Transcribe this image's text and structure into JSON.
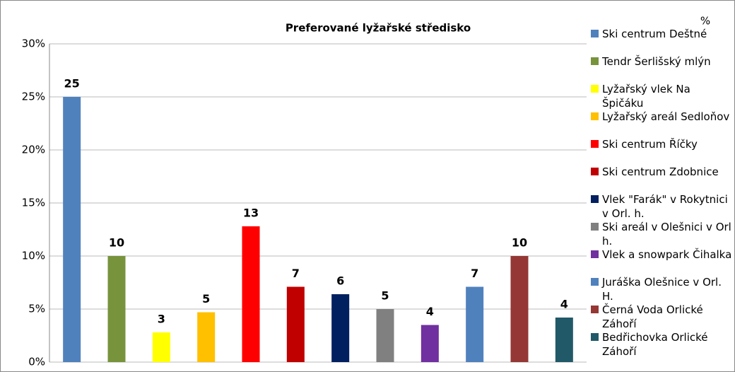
{
  "chart_data": {
    "type": "bar",
    "title": "Preferované lyžařské středisko",
    "legend_title": "%",
    "categories": [
      null
    ],
    "series": [
      {
        "name": "Ski centrum Deštné",
        "color": "#4f81bd",
        "values": [
          25
        ],
        "value_labels": [
          "25"
        ]
      },
      {
        "name": "Tendr Šerlišský mlýn",
        "color": "#77933c",
        "values": [
          10
        ],
        "value_labels": [
          "10"
        ]
      },
      {
        "name": "Lyžařský vlek Na Špičáku",
        "color": "#ffff00",
        "values": [
          2.8
        ],
        "value_labels": [
          "3"
        ]
      },
      {
        "name": "Lyžařský areál Sedloňov",
        "color": "#ffc000",
        "values": [
          4.7
        ],
        "value_labels": [
          "5"
        ]
      },
      {
        "name": "Ski centrum Říčky",
        "color": "#ff0000",
        "values": [
          12.8
        ],
        "value_labels": [
          "13"
        ]
      },
      {
        "name": "Ski centrum Zdobnice",
        "color": "#c00000",
        "values": [
          7.1
        ],
        "value_labels": [
          "7"
        ]
      },
      {
        "name": "Vlek \"Farák\" v Rokytnici v Orl. h.",
        "color": "#002060",
        "values": [
          6.4
        ],
        "value_labels": [
          "6"
        ]
      },
      {
        "name": "Ski areál v Olešnici v Orl h.",
        "color": "#808080",
        "values": [
          5.0
        ],
        "value_labels": [
          "5"
        ]
      },
      {
        "name": "Vlek a snowpark Čihalka",
        "color": "#7030a0",
        "values": [
          3.5
        ],
        "value_labels": [
          "4"
        ]
      },
      {
        "name": "Juráška Olešnice v Orl. H.",
        "color": "#4f81bd",
        "values": [
          7.1
        ],
        "value_labels": [
          "7"
        ]
      },
      {
        "name": "Černá Voda Orlické Záhoří",
        "color": "#953735",
        "values": [
          10
        ],
        "value_labels": [
          "10"
        ]
      },
      {
        "name": "Bedřichovka Orlické Záhoří",
        "color": "#215968",
        "values": [
          4.2
        ],
        "value_labels": [
          "4"
        ]
      }
    ],
    "ylim": [
      0,
      30
    ],
    "yticks": [
      {
        "value": 0,
        "label": "0%"
      },
      {
        "value": 5,
        "label": "5%"
      },
      {
        "value": 10,
        "label": "10%"
      },
      {
        "value": 15,
        "label": "15%"
      },
      {
        "value": 20,
        "label": "20%"
      },
      {
        "value": 25,
        "label": "25%"
      },
      {
        "value": 30,
        "label": "30%"
      }
    ],
    "grid": true,
    "legend": "right"
  }
}
